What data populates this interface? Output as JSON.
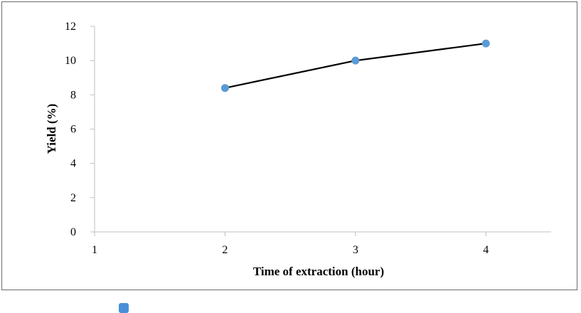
{
  "chart_data": {
    "type": "line",
    "x": [
      2,
      3,
      4
    ],
    "series": [
      {
        "values": [
          8.4,
          10.0,
          11.0
        ]
      }
    ],
    "xlabel": "Time of extraction (hour)",
    "ylabel": "Yield  (%)",
    "xlim": [
      1,
      4.5
    ],
    "ylim": [
      0,
      12
    ],
    "x_ticks": [
      "1",
      "2",
      "3",
      "4"
    ],
    "y_ticks": [
      "0",
      "2",
      "4",
      "6",
      "8",
      "10",
      "12"
    ],
    "grid": false,
    "colors": {
      "line": "#000000",
      "marker": "#5b9bd5",
      "axis": "#bfbfbf",
      "legend_marker": "#4a90d9"
    }
  }
}
